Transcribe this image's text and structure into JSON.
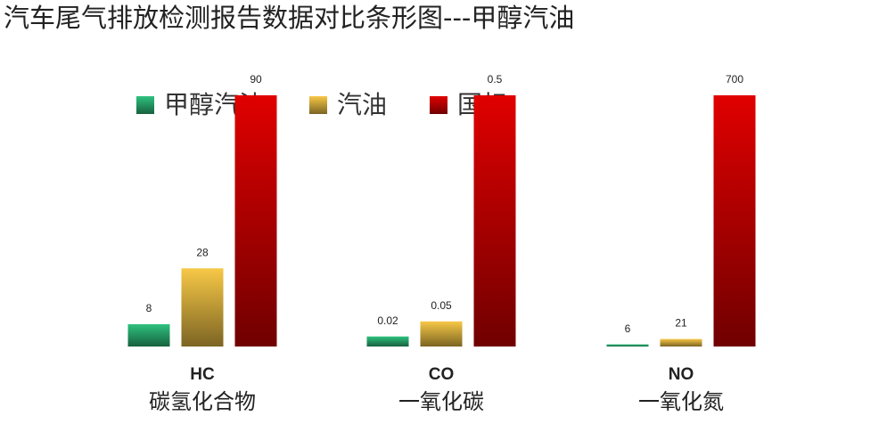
{
  "chart_data": {
    "type": "bar",
    "title": "汽车尾气排放检测报告数据对比条形图---甲醇汽油",
    "categories": [
      "HC",
      "CO",
      "NO"
    ],
    "category_subtitles": [
      "碳氢化合物",
      "一氧化碳",
      "一氧化氮"
    ],
    "series": [
      {
        "name": "甲醇汽油",
        "color": "#2ec27e",
        "values": [
          8,
          0.02,
          6
        ]
      },
      {
        "name": "汽油",
        "color": "#f7c846",
        "values": [
          28,
          0.05,
          21
        ]
      },
      {
        "name": "国标",
        "color": "#e00000",
        "values": [
          90,
          0.5,
          700
        ]
      }
    ]
  }
}
